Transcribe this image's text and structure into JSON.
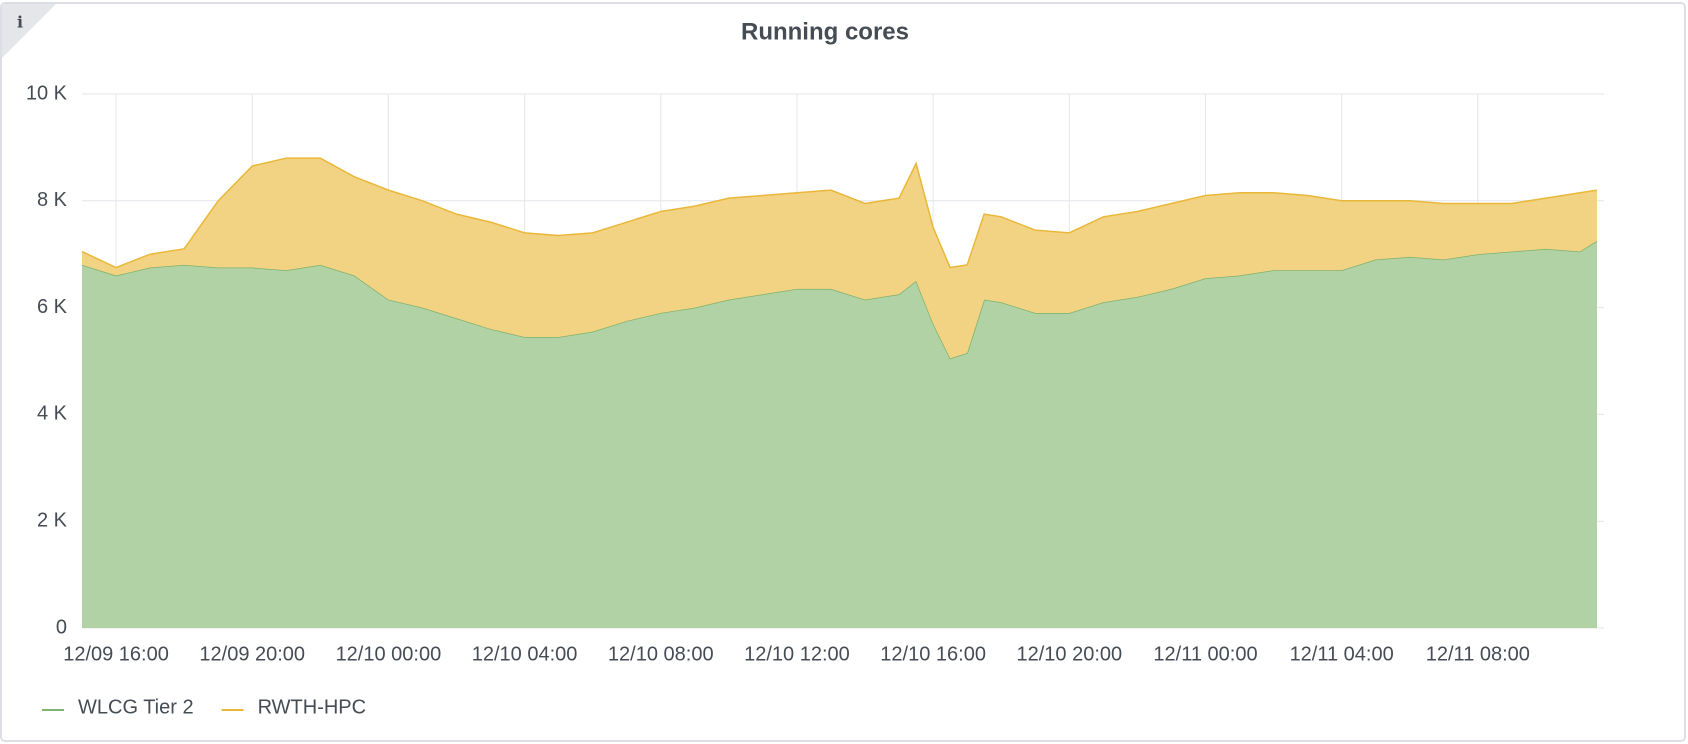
{
  "chart_data": {
    "type": "stacked-area",
    "title": "Running cores",
    "x": [
      "12/09 15:00",
      "12/09 16:00",
      "12/09 17:00",
      "12/09 18:00",
      "12/09 19:00",
      "12/09 20:00",
      "12/09 21:00",
      "12/09 22:00",
      "12/09 23:00",
      "12/10 00:00",
      "12/10 01:00",
      "12/10 02:00",
      "12/10 03:00",
      "12/10 04:00",
      "12/10 05:00",
      "12/10 06:00",
      "12/10 07:00",
      "12/10 08:00",
      "12/10 09:00",
      "12/10 10:00",
      "12/10 11:00",
      "12/10 12:00",
      "12/10 13:00",
      "12/10 14:00",
      "12/10 15:00",
      "12/10 15:30",
      "12/10 16:00",
      "12/10 16:30",
      "12/10 17:00",
      "12/10 17:30",
      "12/10 18:00",
      "12/10 19:00",
      "12/10 20:00",
      "12/10 21:00",
      "12/10 22:00",
      "12/10 23:00",
      "12/11 00:00",
      "12/11 01:00",
      "12/11 02:00",
      "12/11 03:00",
      "12/11 04:00",
      "12/11 05:00",
      "12/11 06:00",
      "12/11 07:00",
      "12/11 08:00",
      "12/11 09:00",
      "12/11 10:00",
      "12/11 11:00",
      "12/11 11:30"
    ],
    "series": [
      {
        "name": "WLCG Tier 2",
        "color": "#7eb26d",
        "fill": "#b1d2a5",
        "values": [
          6800,
          6600,
          6750,
          6800,
          6750,
          6750,
          6700,
          6800,
          6600,
          6150,
          6000,
          5800,
          5600,
          5450,
          5450,
          5550,
          5750,
          5900,
          6000,
          6150,
          6250,
          6350,
          6350,
          6150,
          6250,
          6500,
          5700,
          5050,
          5150,
          6150,
          6100,
          5900,
          5900,
          6100,
          6200,
          6350,
          6550,
          6600,
          6700,
          6700,
          6700,
          6900,
          6950,
          6900,
          7000,
          7050,
          7100,
          7050,
          7250
        ]
      },
      {
        "name": "RWTH-HPC",
        "color": "#eab839",
        "fill": "#f2d283",
        "values": [
          250,
          150,
          250,
          300,
          1250,
          1900,
          2100,
          2000,
          1850,
          2050,
          2000,
          1950,
          2000,
          1950,
          1900,
          1850,
          1850,
          1900,
          1900,
          1900,
          1850,
          1800,
          1850,
          1800,
          1800,
          2200,
          1800,
          1700,
          1650,
          1600,
          1600,
          1550,
          1500,
          1600,
          1600,
          1600,
          1550,
          1550,
          1450,
          1400,
          1300,
          1100,
          1050,
          1050,
          950,
          900,
          950,
          1100,
          950
        ]
      }
    ],
    "xlim": [
      "12/09 15:00",
      "12/11 11:30"
    ],
    "xticks": [
      "12/09 16:00",
      "12/09 20:00",
      "12/10 00:00",
      "12/10 04:00",
      "12/10 08:00",
      "12/10 12:00",
      "12/10 16:00",
      "12/10 20:00",
      "12/11 00:00",
      "12/11 04:00",
      "12/11 08:00"
    ],
    "ylim": [
      0,
      10000
    ],
    "yticks": [
      0,
      {
        "value": 2000,
        "label": "2 K"
      },
      {
        "value": 4000,
        "label": "4 K"
      },
      {
        "value": 6000,
        "label": "6 K"
      },
      {
        "value": 8000,
        "label": "8 K"
      },
      {
        "value": 10000,
        "label": "10 K"
      }
    ],
    "grid": true
  }
}
